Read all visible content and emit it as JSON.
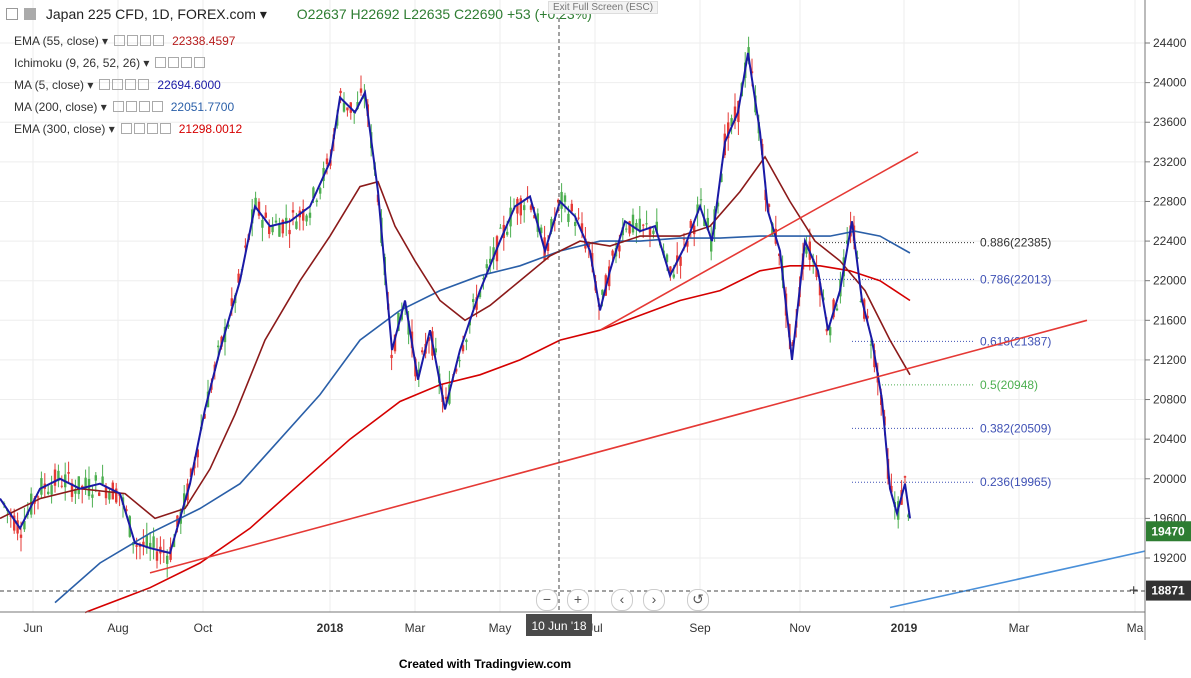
{
  "header": {
    "symbol": "Japan 225 CFD, 1D, FOREX.com",
    "ohlc": "O22637  H22692  L22635  C22690",
    "change": "+53 (+0.23%)",
    "exit_fullscreen": "Exit Full Screen (ESC)"
  },
  "indicators": [
    {
      "label": "EMA (55, close)",
      "value": "22338.4597",
      "color": "#b71c1c"
    },
    {
      "label": "Ichimoku (9, 26, 52, 26)",
      "value": "",
      "color": "#1565c0"
    },
    {
      "label": "MA (5, close)",
      "value": "22694.6000",
      "color": "#1a1aa6"
    },
    {
      "label": "MA (200, close)",
      "value": "22051.7700",
      "color": "#2a5fa8"
    },
    {
      "label": "EMA (300, close)",
      "value": "21298.0012",
      "color": "#d50000"
    }
  ],
  "footer": "Created with Tradingview.com",
  "crosshair_date": "10 Jun '18",
  "nav_buttons": [
    "−",
    "+",
    "‹",
    "›",
    "↺"
  ],
  "chart_data": {
    "type": "line",
    "title": "Japan 225 CFD, 1D, FOREX.com",
    "x_ticks": [
      "Jun",
      "Aug",
      "Oct",
      "2018",
      "Mar",
      "May",
      "Jul",
      "Sep",
      "Nov",
      "2019",
      "Mar",
      "Ma"
    ],
    "y_ticks": [
      19200,
      19600,
      20000,
      20400,
      20800,
      21200,
      21600,
      22000,
      22400,
      22800,
      23200,
      23600,
      24000,
      24400
    ],
    "ylim": [
      18650,
      24700
    ],
    "price_labels": [
      {
        "value": 19470,
        "label": "19470",
        "color": "#2e7d32"
      },
      {
        "value": 18871,
        "label": "18871",
        "color": "#333333"
      }
    ],
    "fibonacci": [
      {
        "level": "0.886",
        "value": 22385,
        "label": "0.886(22385)",
        "color": "#333333"
      },
      {
        "level": "0.786",
        "value": 22013,
        "label": "0.786(22013)",
        "color": "#3f51b5"
      },
      {
        "level": "0.618",
        "value": 21387,
        "label": "0.618(21387)",
        "color": "#3f51b5"
      },
      {
        "level": "0.5",
        "value": 20948,
        "label": "0.5(20948)",
        "color": "#4caf50"
      },
      {
        "level": "0.382",
        "value": 20509,
        "label": "0.382(20509)",
        "color": "#3f51b5"
      },
      {
        "level": "0.236",
        "value": 19965,
        "label": "0.236(19965)",
        "color": "#3f51b5"
      }
    ],
    "series": [
      {
        "name": "MA (5, close)",
        "color": "#1a1aa6",
        "points": [
          [
            0,
            19800
          ],
          [
            20,
            19500
          ],
          [
            40,
            19900
          ],
          [
            60,
            20000
          ],
          [
            80,
            19900
          ],
          [
            100,
            19950
          ],
          [
            120,
            19850
          ],
          [
            135,
            19350
          ],
          [
            150,
            19300
          ],
          [
            170,
            19250
          ],
          [
            190,
            19950
          ],
          [
            205,
            20700
          ],
          [
            220,
            21300
          ],
          [
            240,
            22000
          ],
          [
            255,
            22750
          ],
          [
            270,
            22550
          ],
          [
            290,
            22600
          ],
          [
            310,
            22750
          ],
          [
            330,
            23200
          ],
          [
            340,
            23850
          ],
          [
            355,
            23700
          ],
          [
            365,
            23900
          ],
          [
            378,
            22900
          ],
          [
            392,
            21300
          ],
          [
            405,
            21800
          ],
          [
            418,
            21000
          ],
          [
            430,
            21500
          ],
          [
            445,
            20700
          ],
          [
            460,
            21300
          ],
          [
            480,
            21900
          ],
          [
            500,
            22400
          ],
          [
            515,
            22750
          ],
          [
            530,
            22850
          ],
          [
            545,
            22300
          ],
          [
            560,
            22800
          ],
          [
            575,
            22650
          ],
          [
            590,
            22300
          ],
          [
            600,
            21700
          ],
          [
            610,
            22100
          ],
          [
            625,
            22600
          ],
          [
            640,
            22500
          ],
          [
            655,
            22550
          ],
          [
            670,
            22050
          ],
          [
            685,
            22350
          ],
          [
            700,
            22750
          ],
          [
            712,
            22400
          ],
          [
            725,
            23400
          ],
          [
            738,
            23700
          ],
          [
            748,
            24300
          ],
          [
            760,
            23500
          ],
          [
            768,
            22700
          ],
          [
            780,
            22300
          ],
          [
            792,
            21200
          ],
          [
            805,
            22400
          ],
          [
            818,
            22100
          ],
          [
            828,
            21500
          ],
          [
            840,
            21900
          ],
          [
            852,
            22600
          ],
          [
            862,
            21800
          ],
          [
            872,
            21400
          ],
          [
            882,
            20800
          ],
          [
            890,
            19900
          ],
          [
            897,
            19650
          ],
          [
            905,
            19950
          ],
          [
            910,
            19600
          ]
        ]
      },
      {
        "name": "EMA (55, close)",
        "color": "#8b1a1a",
        "points": [
          [
            0,
            19600
          ],
          [
            40,
            19800
          ],
          [
            80,
            19900
          ],
          [
            125,
            19850
          ],
          [
            155,
            19600
          ],
          [
            185,
            19700
          ],
          [
            210,
            20100
          ],
          [
            235,
            20650
          ],
          [
            265,
            21400
          ],
          [
            300,
            22000
          ],
          [
            330,
            22450
          ],
          [
            360,
            22950
          ],
          [
            378,
            23000
          ],
          [
            395,
            22550
          ],
          [
            415,
            22200
          ],
          [
            440,
            21800
          ],
          [
            465,
            21600
          ],
          [
            490,
            21750
          ],
          [
            520,
            22000
          ],
          [
            550,
            22250
          ],
          [
            580,
            22400
          ],
          [
            610,
            22350
          ],
          [
            640,
            22450
          ],
          [
            680,
            22450
          ],
          [
            710,
            22550
          ],
          [
            740,
            22900
          ],
          [
            765,
            23250
          ],
          [
            790,
            22800
          ],
          [
            815,
            22400
          ],
          [
            840,
            22200
          ],
          [
            865,
            21900
          ],
          [
            890,
            21400
          ],
          [
            910,
            21050
          ]
        ]
      },
      {
        "name": "MA (200, close)",
        "color": "#2a5fa8",
        "points": [
          [
            55,
            18750
          ],
          [
            100,
            19150
          ],
          [
            150,
            19450
          ],
          [
            200,
            19700
          ],
          [
            240,
            19950
          ],
          [
            280,
            20400
          ],
          [
            320,
            20850
          ],
          [
            360,
            21400
          ],
          [
            400,
            21700
          ],
          [
            440,
            21900
          ],
          [
            480,
            22050
          ],
          [
            520,
            22150
          ],
          [
            560,
            22300
          ],
          [
            600,
            22400
          ],
          [
            640,
            22400
          ],
          [
            680,
            22430
          ],
          [
            720,
            22430
          ],
          [
            760,
            22450
          ],
          [
            800,
            22450
          ],
          [
            830,
            22450
          ],
          [
            855,
            22500
          ],
          [
            880,
            22450
          ],
          [
            910,
            22280
          ]
        ]
      },
      {
        "name": "EMA (300, close)",
        "color": "#d50000",
        "points": [
          [
            85,
            18650
          ],
          [
            150,
            18900
          ],
          [
            200,
            19150
          ],
          [
            250,
            19500
          ],
          [
            300,
            19950
          ],
          [
            350,
            20400
          ],
          [
            400,
            20780
          ],
          [
            440,
            20950
          ],
          [
            480,
            21050
          ],
          [
            520,
            21200
          ],
          [
            560,
            21400
          ],
          [
            600,
            21500
          ],
          [
            640,
            21650
          ],
          [
            680,
            21800
          ],
          [
            720,
            21900
          ],
          [
            760,
            22100
          ],
          [
            790,
            22150
          ],
          [
            820,
            22150
          ],
          [
            850,
            22100
          ],
          [
            880,
            22000
          ],
          [
            910,
            21800
          ]
        ]
      }
    ],
    "trendlines": [
      {
        "color": "#e53935",
        "from": [
          150,
          19050
        ],
        "to": [
          1087,
          21600
        ]
      },
      {
        "color": "#e53935",
        "from": [
          600,
          21500
        ],
        "to": [
          918,
          23300
        ]
      },
      {
        "color": "#4a90d9",
        "from": [
          890,
          18700
        ],
        "to": [
          1145,
          19270
        ]
      }
    ]
  }
}
